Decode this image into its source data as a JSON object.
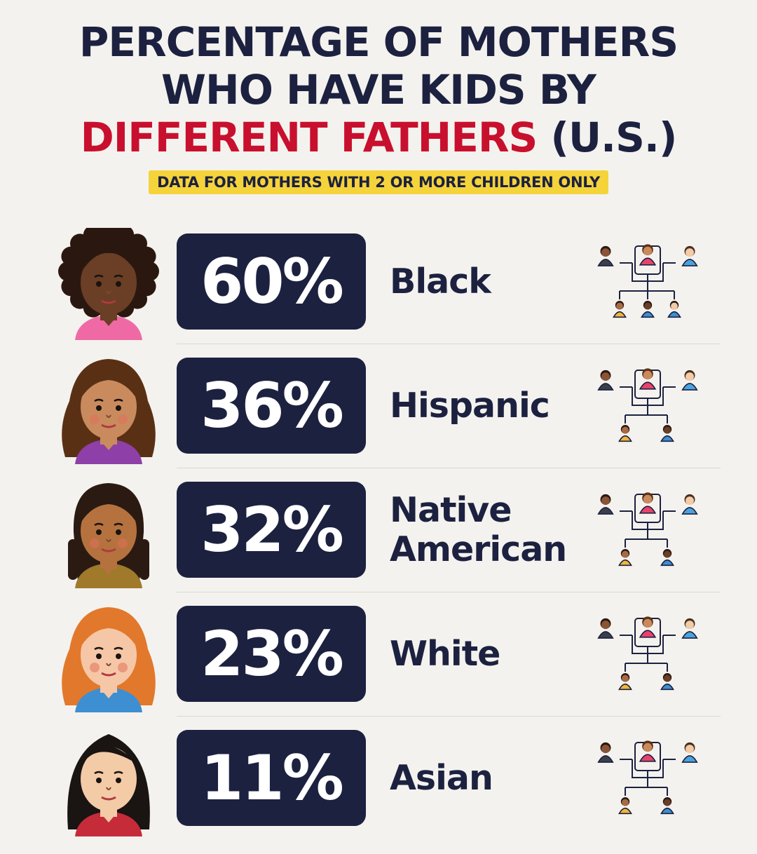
{
  "title": {
    "line1": "PERCENTAGE OF MOTHERS",
    "line2": "WHO HAVE KIDS BY",
    "line3_highlight": "DIFFERENT FATHERS",
    "line3_rest": "(U.S.)"
  },
  "subtitle": "DATA FOR MOTHERS WITH 2 OR MORE CHILDREN ONLY",
  "colors": {
    "navy": "#1c2140",
    "red": "#c8102e",
    "yellow": "#f5d33a",
    "background": "#f4f2ee"
  },
  "rows": [
    {
      "percent_text": "60%",
      "label": "Black",
      "children_icons": 3,
      "avatar": "black-woman-avatar"
    },
    {
      "percent_text": "36%",
      "label": "Hispanic",
      "children_icons": 2,
      "avatar": "hispanic-woman-avatar"
    },
    {
      "percent_text": "32%",
      "label": "Native\nAmerican",
      "children_icons": 2,
      "avatar": "native-american-woman-avatar"
    },
    {
      "percent_text": "23%",
      "label": "White",
      "children_icons": 2,
      "avatar": "white-woman-avatar"
    },
    {
      "percent_text": "11%",
      "label": "Asian",
      "children_icons": 2,
      "avatar": "asian-woman-avatar"
    }
  ],
  "chart_data": {
    "type": "table",
    "title": "PERCENTAGE OF MOTHERS WHO HAVE KIDS BY DIFFERENT FATHERS (U.S.)",
    "subtitle": "DATA FOR MOTHERS WITH 2 OR MORE CHILDREN ONLY",
    "categories": [
      "Black",
      "Hispanic",
      "Native American",
      "White",
      "Asian"
    ],
    "values": [
      60,
      36,
      32,
      23,
      11
    ],
    "unit": "%"
  }
}
